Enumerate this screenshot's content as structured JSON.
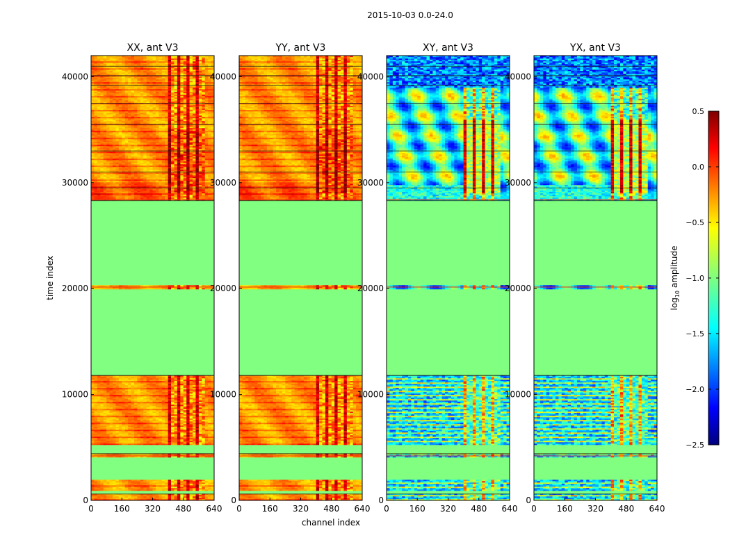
{
  "figure": {
    "suptitle": "2015-10-03 0.0-24.0",
    "ylabel": "time index",
    "xlabel": "channel index"
  },
  "chart_data": [
    {
      "type": "heatmap",
      "title": "XX, ant V3",
      "xlim": [
        0,
        640
      ],
      "ylim": [
        0,
        42000
      ],
      "xticks": [
        "0",
        "160",
        "320",
        "480",
        "640"
      ],
      "yticks": [
        "0",
        "10000",
        "20000",
        "30000",
        "40000"
      ]
    },
    {
      "type": "heatmap",
      "title": "YY, ant V3",
      "xlim": [
        0,
        640
      ],
      "ylim": [
        0,
        42000
      ],
      "xticks": [
        "0",
        "160",
        "320",
        "480",
        "640"
      ],
      "yticks": [
        "0",
        "10000",
        "20000",
        "30000",
        "40000"
      ]
    },
    {
      "type": "heatmap",
      "title": "XY, ant V3",
      "xlim": [
        0,
        640
      ],
      "ylim": [
        0,
        42000
      ],
      "xticks": [
        "0",
        "160",
        "320",
        "480",
        "640"
      ],
      "yticks": [
        "0",
        "10000",
        "20000",
        "30000",
        "40000"
      ]
    },
    {
      "type": "heatmap",
      "title": "YX, ant V3",
      "xlim": [
        0,
        640
      ],
      "ylim": [
        0,
        42000
      ],
      "xticks": [
        "0",
        "160",
        "320",
        "480",
        "640"
      ],
      "yticks": [
        "0",
        "10000",
        "20000",
        "30000",
        "40000"
      ]
    }
  ],
  "colorbar": {
    "label_main": "log",
    "label_sub": "10",
    "label_tail": " amplitude",
    "range": [
      -2.5,
      0.5
    ],
    "ticks": [
      "0.5",
      "0.0",
      "−0.5",
      "−1.0",
      "−1.5",
      "−2.0",
      "−2.5"
    ],
    "colormap": "jet"
  }
}
